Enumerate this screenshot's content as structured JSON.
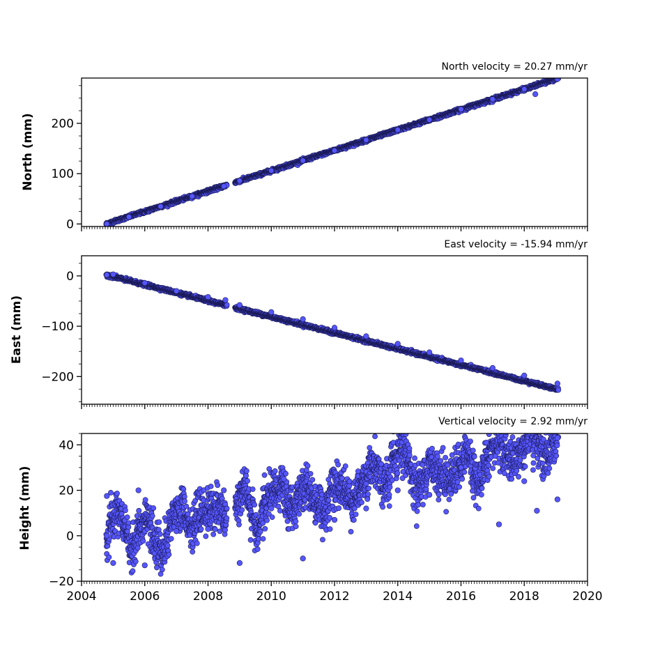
{
  "chart_data": [
    {
      "type": "scatter",
      "title": "North velocity = 20.27 mm/yr",
      "ylabel": "North (mm)",
      "xlim": [
        2004,
        2020
      ],
      "ylim": [
        -5,
        290
      ],
      "yticks": [
        0,
        100,
        200
      ],
      "ytick_labels": [
        "0",
        "100",
        "200"
      ],
      "x_start": 2004.78,
      "x_end": 2019.08,
      "y_start": 0,
      "velocity_mm_per_yr": 20.27,
      "noise_mm": 1.5,
      "gap": [
        2008.6,
        2008.85
      ],
      "points": [
        [
          2004.8,
          0
        ],
        [
          2005.5,
          14
        ],
        [
          2006.5,
          35
        ],
        [
          2007.5,
          55
        ],
        [
          2008.5,
          75
        ],
        [
          2009.0,
          86
        ],
        [
          2010.0,
          106
        ],
        [
          2011.0,
          126
        ],
        [
          2012.0,
          146
        ],
        [
          2013.0,
          167
        ],
        [
          2014.0,
          187
        ],
        [
          2015.0,
          207
        ],
        [
          2016.0,
          228
        ],
        [
          2017.0,
          248
        ],
        [
          2018.0,
          268
        ],
        [
          2019.05,
          288
        ],
        [
          2018.35,
          258
        ]
      ]
    },
    {
      "type": "scatter",
      "title": "East velocity = -15.94 mm/yr",
      "ylabel": "East (mm)",
      "xlim": [
        2004,
        2020
      ],
      "ylim": [
        -255,
        40
      ],
      "yticks": [
        0,
        -100,
        -200
      ],
      "ytick_labels": [
        "0",
        "−100",
        "−200"
      ],
      "x_start": 2004.78,
      "x_end": 2019.08,
      "y_start": 2,
      "velocity_mm_per_yr": -15.94,
      "noise_mm": 1.5,
      "gap": [
        2008.6,
        2008.85
      ],
      "points": [
        [
          2004.8,
          2
        ],
        [
          2005.0,
          3
        ],
        [
          2006.0,
          -14
        ],
        [
          2007.0,
          -30
        ],
        [
          2008.0,
          -42
        ],
        [
          2008.55,
          -48
        ],
        [
          2009.0,
          -58
        ],
        [
          2010.0,
          -72
        ],
        [
          2011.0,
          -86
        ],
        [
          2012.0,
          -103
        ],
        [
          2013.0,
          -120
        ],
        [
          2014.0,
          -135
        ],
        [
          2015.0,
          -152
        ],
        [
          2016.0,
          -168
        ],
        [
          2017.0,
          -183
        ],
        [
          2018.0,
          -198
        ],
        [
          2019.05,
          -214
        ]
      ]
    },
    {
      "type": "scatter",
      "title": "Vertical velocity = 2.92 mm/yr",
      "ylabel": "Height (mm)",
      "xlim": [
        2004,
        2020
      ],
      "ylim": [
        -20,
        45
      ],
      "yticks": [
        -20,
        0,
        20,
        40
      ],
      "ytick_labels": [
        "−20",
        "0",
        "20",
        "40"
      ],
      "x_start": 2004.78,
      "x_end": 2019.08,
      "y_start": -1,
      "velocity_mm_per_yr": 2.92,
      "noise_mm": 4.5,
      "seasonal_mm": 5,
      "gap": [
        2008.6,
        2008.85
      ],
      "points": [
        [
          2004.8,
          0
        ],
        [
          2004.8,
          17.5
        ],
        [
          2005.0,
          -12
        ],
        [
          2005.8,
          20
        ],
        [
          2006.0,
          -13
        ],
        [
          2007.0,
          2
        ],
        [
          2008.0,
          3
        ],
        [
          2008.5,
          20
        ],
        [
          2009.0,
          -12
        ],
        [
          2010.0,
          12
        ],
        [
          2010.4,
          25
        ],
        [
          2011.0,
          -10
        ],
        [
          2012.0,
          7
        ],
        [
          2013.0,
          12
        ],
        [
          2014.0,
          20
        ],
        [
          2015.0,
          18
        ],
        [
          2016.0,
          30
        ],
        [
          2016.8,
          41
        ],
        [
          2017.2,
          5
        ],
        [
          2018.0,
          24
        ],
        [
          2018.4,
          11
        ],
        [
          2019.05,
          43
        ],
        [
          2019.05,
          16
        ]
      ]
    }
  ],
  "x_axis": {
    "ticks": [
      2004,
      2006,
      2008,
      2010,
      2012,
      2014,
      2016,
      2018,
      2020
    ],
    "tick_labels": [
      "2004",
      "2006",
      "2008",
      "2010",
      "2012",
      "2014",
      "2016",
      "2018",
      "2020"
    ]
  },
  "marker": {
    "fill": "#5656ff",
    "edge": "#1a1a55"
  },
  "axes_color": "#000000"
}
